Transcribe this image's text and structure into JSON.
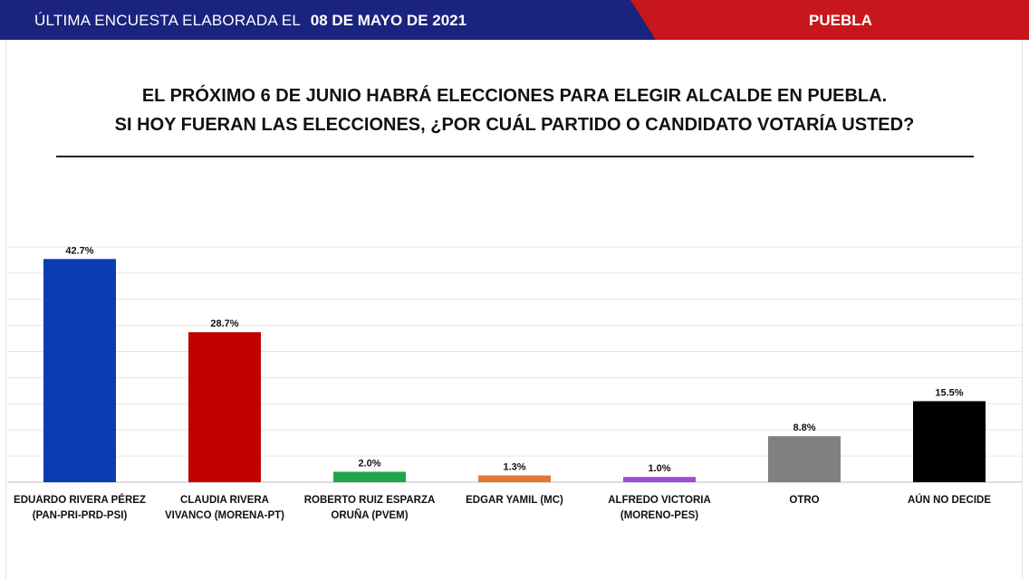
{
  "header": {
    "prefix": "ÚLTIMA ENCUESTA ELABORADA EL",
    "date": "08 DE MAYO DE 2021",
    "region": "PUEBLA",
    "colors": {
      "blue": "#1a237e",
      "red": "#c8161d"
    }
  },
  "question": {
    "line1": "EL PRÓXIMO 6 DE JUNIO HABRÁ ELECCIONES PARA ELEGIR ALCALDE EN PUEBLA.",
    "line2": "SI HOY FUERAN LAS ELECCIONES, ¿POR CUÁL PARTIDO O CANDIDATO VOTARÍA USTED?"
  },
  "chart_data": {
    "type": "bar",
    "categories": [
      [
        "EDUARDO RIVERA PÉREZ",
        "(PAN-PRI-PRD-PSI)"
      ],
      [
        "CLAUDIA RIVERA",
        "VIVANCO (MORENA-PT)"
      ],
      [
        "ROBERTO RUIZ ESPARZA",
        "ORUÑA (PVEM)"
      ],
      [
        "EDGAR YAMIL (MC)"
      ],
      [
        "ALFREDO VICTORIA",
        "(MORENO-PES)"
      ],
      [
        "OTRO"
      ],
      [
        "AÚN NO DECIDE"
      ]
    ],
    "values": [
      42.7,
      28.7,
      2.0,
      1.3,
      1.0,
      8.8,
      15.5
    ],
    "value_labels": [
      "42.7%",
      "28.7%",
      "2.0%",
      "1.3%",
      "1.0%",
      "8.8%",
      "15.5%"
    ],
    "colors": [
      "#0a3cb3",
      "#c30000",
      "#1ea64b",
      "#e07a30",
      "#9b4fd4",
      "#808080",
      "#000000"
    ],
    "ylim": [
      0,
      45
    ],
    "grid": true,
    "xlabel": "",
    "ylabel": ""
  }
}
